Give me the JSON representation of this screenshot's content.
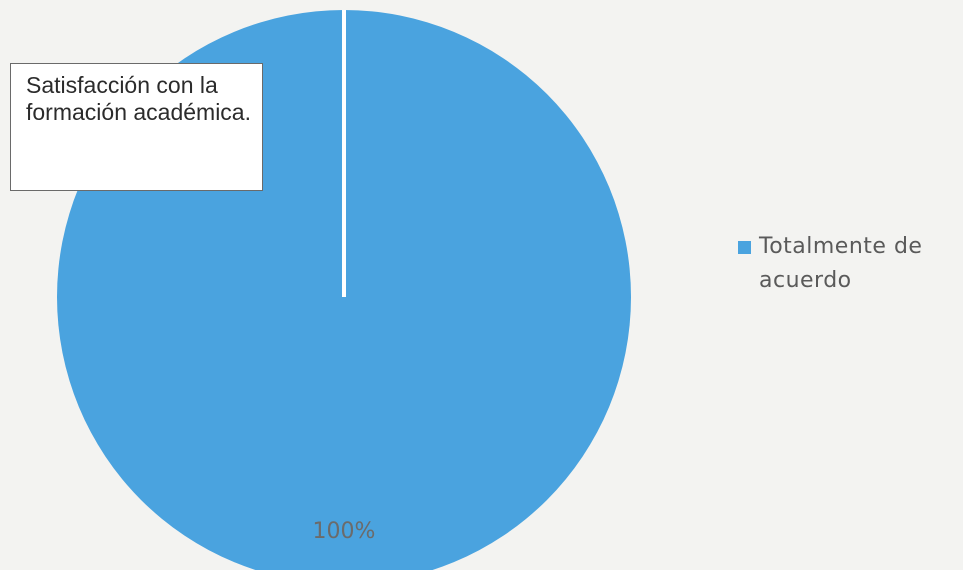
{
  "chart_data": {
    "type": "pie",
    "title": "Satisfacción con la formación académica.",
    "categories": [
      "Totalmente de acuerdo"
    ],
    "values": [
      100
    ],
    "data_labels": [
      "100%"
    ],
    "colors": [
      "#4aa3df"
    ],
    "legend": {
      "placement": "right",
      "entries": [
        "Totalmente de acuerdo"
      ]
    }
  }
}
